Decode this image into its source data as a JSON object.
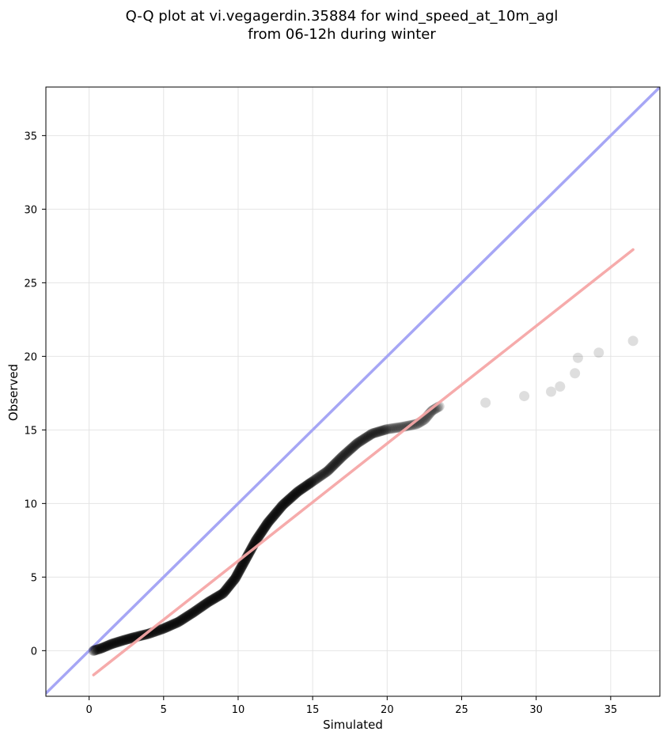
{
  "chart_data": {
    "type": "scatter",
    "title_line1": "Q-Q plot at vi.vegagerdin.35884 for wind_speed_at_10m_agl",
    "title_line2": "from 06-12h during winter",
    "xlabel": "Simulated",
    "ylabel": "Observed",
    "xlim": [
      -2.9,
      38.3
    ],
    "ylim": [
      -3.1,
      38.3
    ],
    "xticks": [
      0,
      5,
      10,
      15,
      20,
      25,
      30,
      35
    ],
    "yticks": [
      0,
      5,
      10,
      15,
      20,
      25,
      30,
      35
    ],
    "grid": true,
    "reference_line": {
      "color": "#a6a6f5",
      "x": [
        -2.9,
        38.3
      ],
      "y": [
        -2.9,
        38.3
      ]
    },
    "fit_line": {
      "color": "#f5a6a6",
      "x": [
        0.3,
        36.5
      ],
      "y": [
        -1.65,
        27.25
      ]
    },
    "points_color": "#000000",
    "quantile_curve": [
      [
        0.3,
        0.0
      ],
      [
        0.8,
        0.15
      ],
      [
        1.5,
        0.45
      ],
      [
        2.3,
        0.7
      ],
      [
        3.0,
        0.9
      ],
      [
        4.0,
        1.15
      ],
      [
        5.0,
        1.5
      ],
      [
        6.0,
        1.95
      ],
      [
        7.0,
        2.6
      ],
      [
        8.0,
        3.3
      ],
      [
        9.0,
        3.9
      ],
      [
        9.8,
        4.9
      ],
      [
        10.5,
        6.2
      ],
      [
        11.2,
        7.5
      ],
      [
        12.0,
        8.7
      ],
      [
        13.0,
        9.9
      ],
      [
        14.0,
        10.8
      ],
      [
        15.0,
        11.5
      ],
      [
        16.0,
        12.2
      ],
      [
        17.0,
        13.2
      ],
      [
        18.0,
        14.1
      ],
      [
        19.0,
        14.75
      ],
      [
        20.0,
        15.05
      ],
      [
        21.0,
        15.2
      ],
      [
        22.0,
        15.4
      ],
      [
        22.5,
        15.7
      ],
      [
        23.0,
        16.3
      ],
      [
        23.5,
        16.6
      ]
    ],
    "outliers": [
      [
        26.6,
        16.85
      ],
      [
        29.2,
        17.3
      ],
      [
        31.0,
        17.6
      ],
      [
        31.6,
        17.95
      ],
      [
        32.6,
        18.85
      ],
      [
        32.8,
        19.9
      ],
      [
        34.2,
        20.25
      ],
      [
        36.5,
        21.05
      ]
    ]
  }
}
